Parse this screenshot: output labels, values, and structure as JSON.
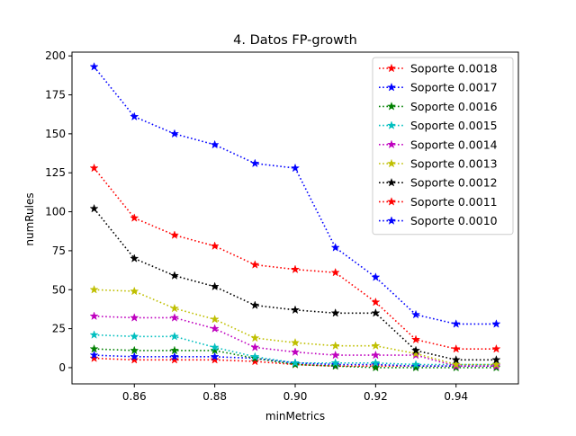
{
  "chart_data": {
    "type": "line",
    "title": "4. Datos FP-growth",
    "xlabel": "minMetrics",
    "ylabel": "numRules",
    "xlim": [
      0.8445,
      0.9555
    ],
    "ylim": [
      -10.4,
      202.4
    ],
    "x_ticks": [
      0.86,
      0.88,
      0.9,
      0.92,
      0.94
    ],
    "x_tick_labels": [
      "0.86",
      "0.88",
      "0.90",
      "0.92",
      "0.94"
    ],
    "y_ticks": [
      0,
      25,
      50,
      75,
      100,
      125,
      150,
      175,
      200
    ],
    "y_tick_labels": [
      "0",
      "25",
      "50",
      "75",
      "100",
      "125",
      "150",
      "175",
      "200"
    ],
    "grid": false,
    "legend_position": "top-right",
    "marker": "star",
    "line_style": "dotted",
    "x": [
      0.85,
      0.86,
      0.87,
      0.88,
      0.89,
      0.9,
      0.91,
      0.92,
      0.93,
      0.94,
      0.95
    ],
    "series": [
      {
        "name": "Soporte 0.0018",
        "color": "#ff0000",
        "values": [
          6,
          5,
          5,
          5,
          4,
          2,
          1,
          1,
          1,
          1,
          1
        ]
      },
      {
        "name": "Soporte 0.0017",
        "color": "#0000ff",
        "values": [
          8,
          7,
          7,
          7,
          6,
          3,
          2,
          2,
          1,
          1,
          1
        ]
      },
      {
        "name": "Soporte 0.0016",
        "color": "#008000",
        "values": [
          12,
          11,
          11,
          11,
          6,
          2,
          1,
          0,
          0,
          0,
          0
        ]
      },
      {
        "name": "Soporte 0.0015",
        "color": "#00bfbf",
        "values": [
          21,
          20,
          20,
          13,
          7,
          3,
          3,
          3,
          2,
          2,
          2
        ]
      },
      {
        "name": "Soporte 0.0014",
        "color": "#bf00bf",
        "values": [
          33,
          32,
          32,
          25,
          13,
          10,
          8,
          8,
          8,
          1,
          1
        ]
      },
      {
        "name": "Soporte 0.0013",
        "color": "#bfbf00",
        "values": [
          50,
          49,
          38,
          31,
          19,
          16,
          14,
          14,
          9,
          2,
          2
        ]
      },
      {
        "name": "Soporte 0.0012",
        "color": "#000000",
        "values": [
          102,
          70,
          59,
          52,
          40,
          37,
          35,
          35,
          11,
          5,
          5
        ]
      },
      {
        "name": "Soporte 0.0011",
        "color": "#ff0000",
        "values": [
          128,
          96,
          85,
          78,
          66,
          63,
          61,
          42,
          18,
          12,
          12
        ]
      },
      {
        "name": "Soporte 0.0010",
        "color": "#0000ff",
        "values": [
          193,
          161,
          150,
          143,
          131,
          128,
          77,
          58,
          34,
          28,
          28
        ]
      }
    ]
  }
}
